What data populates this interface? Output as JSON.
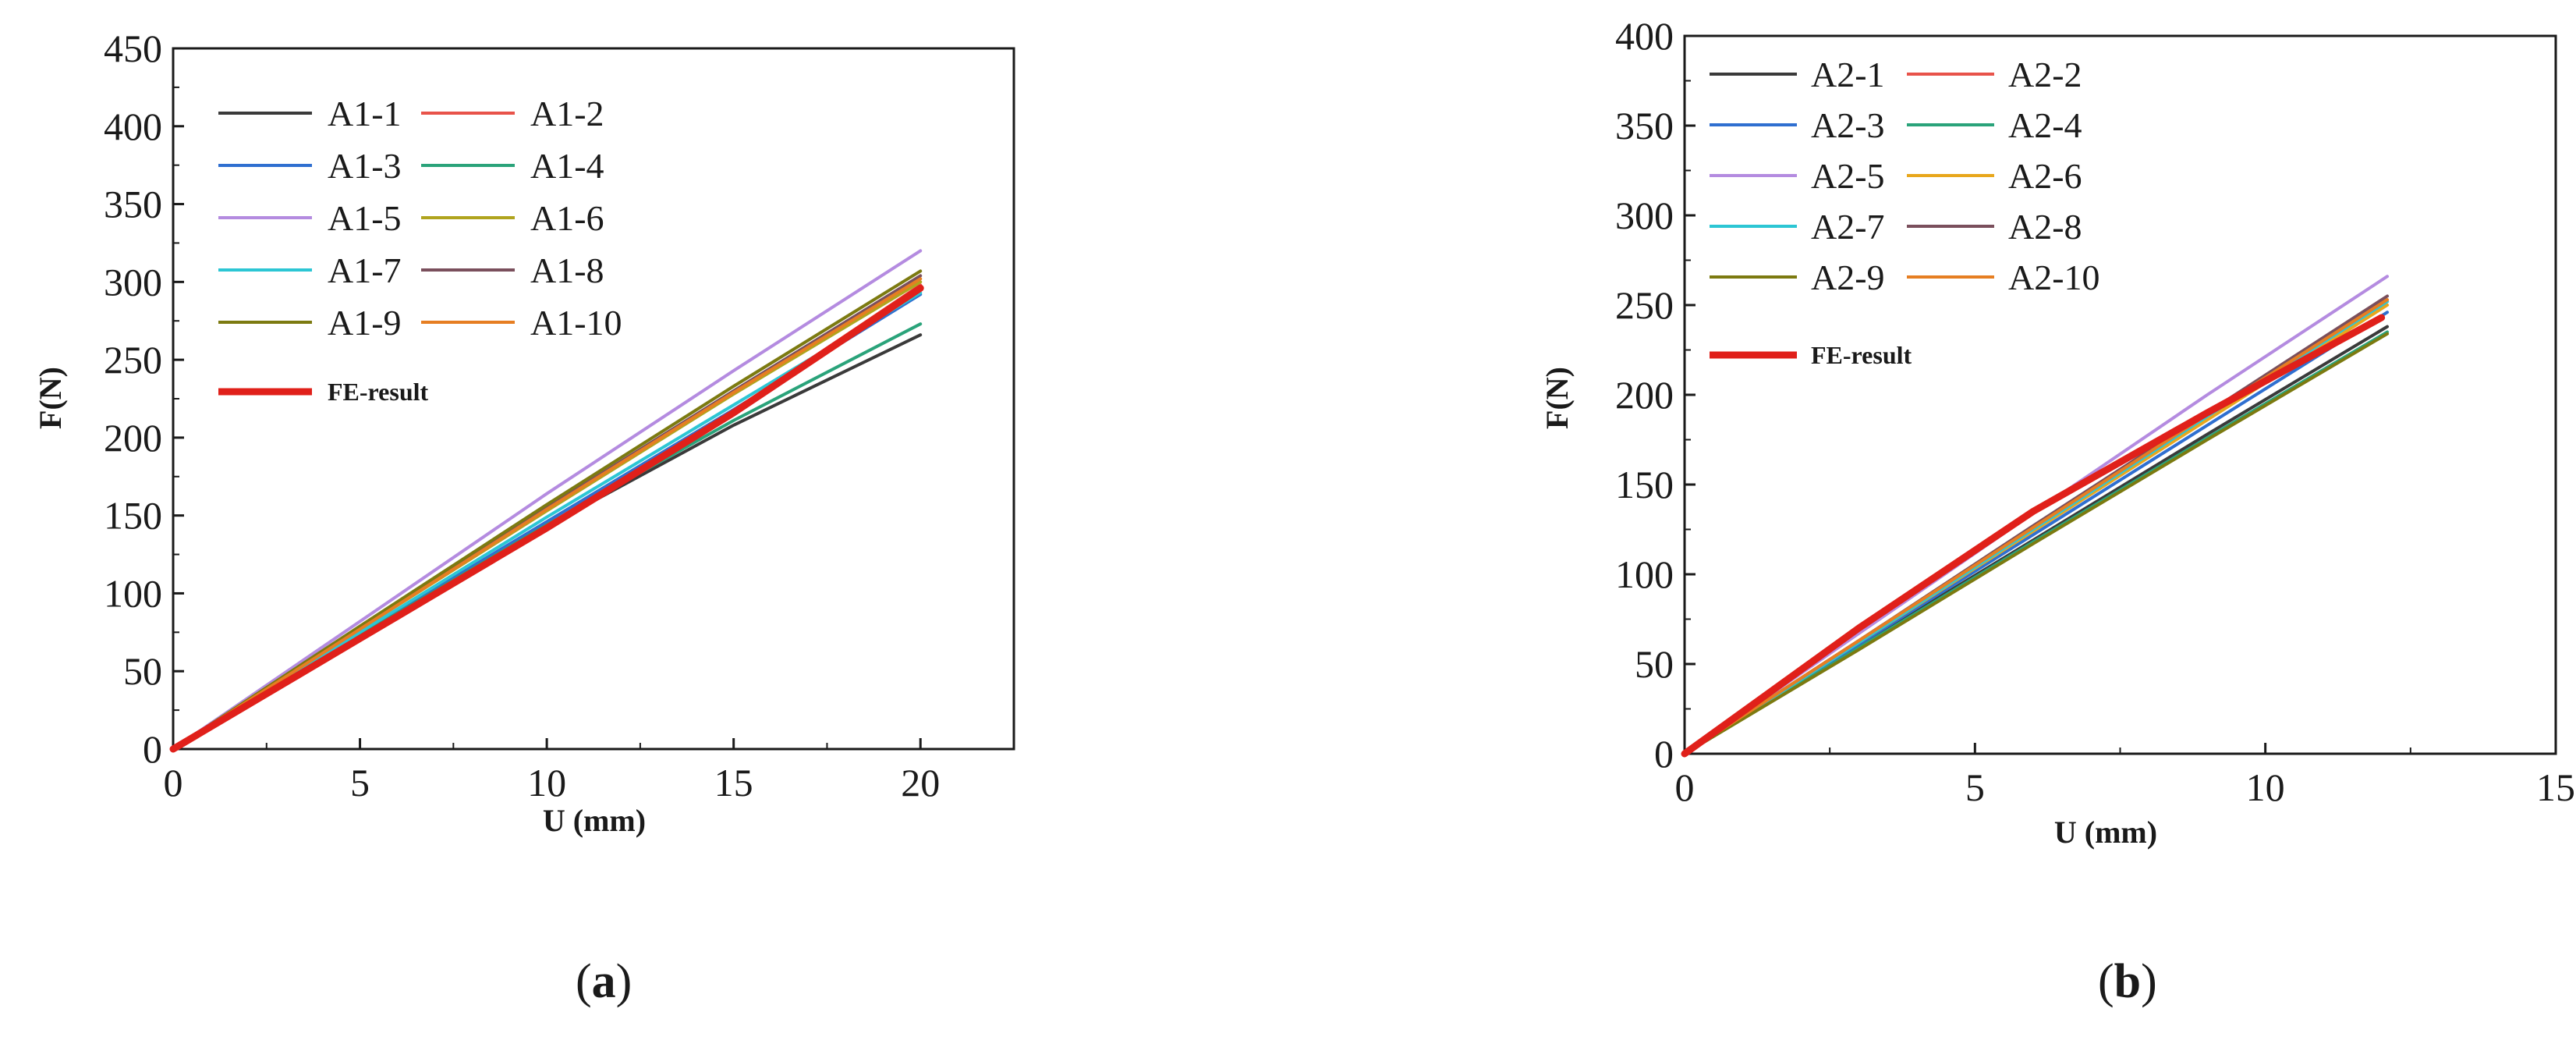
{
  "chart_data": [
    {
      "type": "line",
      "panel_label": "a",
      "xlabel": "U (mm)",
      "ylabel": "F(N)",
      "xlim": [
        0,
        22.5
      ],
      "ylim": [
        0,
        450
      ],
      "xticks": [
        0,
        5,
        10,
        15,
        20
      ],
      "yticks": [
        0,
        50,
        100,
        150,
        200,
        250,
        300,
        350,
        400,
        450
      ],
      "grid": false,
      "legend_position": "top-left",
      "legend_columns": 2,
      "series": [
        {
          "name": "A1-1",
          "color": "#3a3a3a",
          "x": [
            0,
            5,
            10,
            15,
            20
          ],
          "y": [
            0,
            73,
            143,
            208,
            266
          ]
        },
        {
          "name": "A1-2",
          "color": "#e8534a",
          "x": [
            0,
            5,
            10,
            15,
            20
          ],
          "y": [
            0,
            72,
            143,
            217,
            298
          ]
        },
        {
          "name": "A1-3",
          "color": "#2f6fd0",
          "x": [
            0,
            5,
            10,
            15,
            20
          ],
          "y": [
            0,
            74,
            146,
            218,
            292
          ]
        },
        {
          "name": "A1-4",
          "color": "#2aa37a",
          "x": [
            0,
            5,
            10,
            15,
            20
          ],
          "y": [
            0,
            73,
            144,
            211,
            273
          ]
        },
        {
          "name": "A1-5",
          "color": "#b48be0",
          "x": [
            0,
            5,
            10,
            15,
            20
          ],
          "y": [
            0,
            82,
            164,
            243,
            320
          ]
        },
        {
          "name": "A1-6",
          "color": "#b0a41e",
          "x": [
            0,
            5,
            10,
            15,
            20
          ],
          "y": [
            0,
            77,
            153,
            228,
            300
          ]
        },
        {
          "name": "A1-7",
          "color": "#2cc6d4",
          "x": [
            0,
            5,
            10,
            15,
            20
          ],
          "y": [
            0,
            75,
            149,
            221,
            293
          ]
        },
        {
          "name": "A1-8",
          "color": "#7a4f5c",
          "x": [
            0,
            5,
            10,
            15,
            20
          ],
          "y": [
            0,
            78,
            155,
            230,
            304
          ]
        },
        {
          "name": "A1-9",
          "color": "#7c7a10",
          "x": [
            0,
            5,
            10,
            15,
            20
          ],
          "y": [
            0,
            79,
            157,
            233,
            307
          ]
        },
        {
          "name": "A1-10",
          "color": "#e67e22",
          "x": [
            0,
            5,
            10,
            15,
            20
          ],
          "y": [
            0,
            77,
            154,
            229,
            302
          ]
        },
        {
          "name": "FE-result",
          "color": "#e0201a",
          "width": "thick",
          "x": [
            0,
            5,
            10,
            15,
            20
          ],
          "y": [
            0,
            71,
            142,
            216,
            296
          ]
        }
      ]
    },
    {
      "type": "line",
      "panel_label": "b",
      "xlabel": "U (mm)",
      "ylabel": "F(N)",
      "xlim": [
        0,
        15
      ],
      "ylim": [
        0,
        400
      ],
      "xticks": [
        0,
        5,
        10,
        15
      ],
      "yticks": [
        0,
        50,
        100,
        150,
        200,
        250,
        300,
        350,
        400
      ],
      "grid": false,
      "legend_position": "top-left",
      "legend_columns": 2,
      "series": [
        {
          "name": "A2-1",
          "color": "#3a3a3a",
          "x": [
            0,
            3,
            6,
            9,
            12.1
          ],
          "y": [
            0,
            60,
            119,
            178,
            238
          ]
        },
        {
          "name": "A2-2",
          "color": "#e8534a",
          "x": [
            0,
            3,
            6,
            9,
            12.1
          ],
          "y": [
            0,
            63,
            126,
            188,
            252
          ]
        },
        {
          "name": "A2-3",
          "color": "#2f6fd0",
          "x": [
            0,
            3,
            6,
            9,
            12.1
          ],
          "y": [
            0,
            61,
            122,
            183,
            246
          ]
        },
        {
          "name": "A2-4",
          "color": "#2aa37a",
          "x": [
            0,
            3,
            6,
            9,
            12.1
          ],
          "y": [
            0,
            59,
            118,
            176,
            235
          ]
        },
        {
          "name": "A2-5",
          "color": "#b48be0",
          "x": [
            0,
            3,
            6,
            9,
            12.1
          ],
          "y": [
            0,
            67,
            134,
            200,
            266
          ]
        },
        {
          "name": "A2-6",
          "color": "#e8a71c",
          "x": [
            0,
            3,
            6,
            9,
            12.1
          ],
          "y": [
            0,
            62,
            124,
            186,
            250
          ]
        },
        {
          "name": "A2-7",
          "color": "#2cc6d4",
          "x": [
            0,
            3,
            6,
            9,
            12.1
          ],
          "y": [
            0,
            62,
            125,
            188,
            252
          ]
        },
        {
          "name": "A2-8",
          "color": "#7a4f5c",
          "x": [
            0,
            3,
            6,
            9,
            12.1
          ],
          "y": [
            0,
            63,
            127,
            190,
            255
          ]
        },
        {
          "name": "A2-9",
          "color": "#7c7a10",
          "x": [
            0,
            3,
            6,
            9,
            12.1
          ],
          "y": [
            0,
            58,
            117,
            175,
            234
          ]
        },
        {
          "name": "A2-10",
          "color": "#e67e22",
          "x": [
            0,
            3,
            6,
            9,
            12.1
          ],
          "y": [
            0,
            63,
            126,
            189,
            253
          ]
        },
        {
          "name": "FE-result",
          "color": "#e0201a",
          "width": "thick",
          "x": [
            0,
            3,
            6,
            9,
            12
          ],
          "y": [
            0,
            70,
            135,
            190,
            243
          ]
        }
      ]
    }
  ]
}
